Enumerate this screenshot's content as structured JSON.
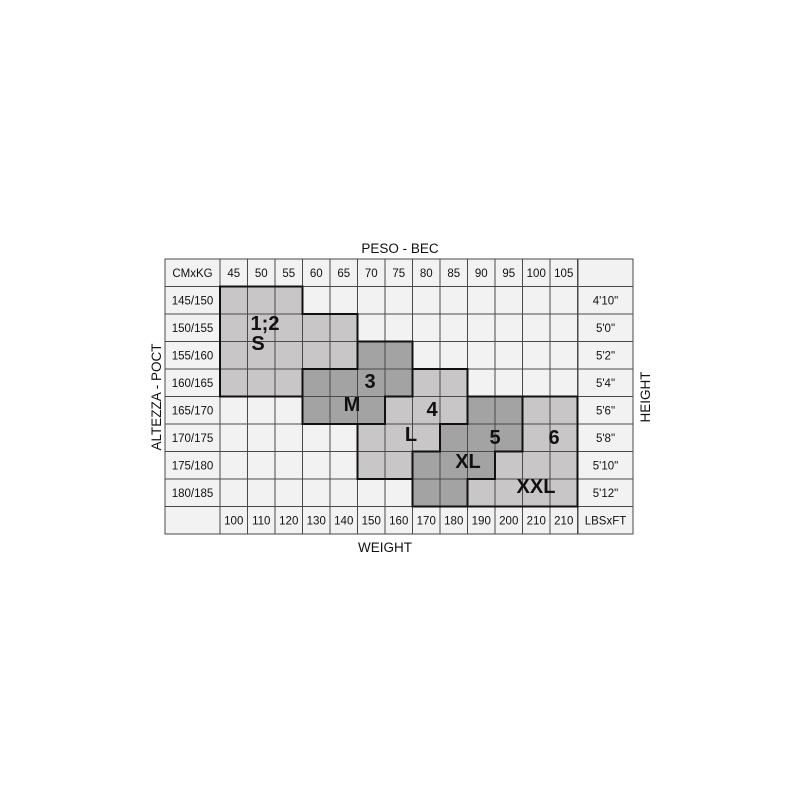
{
  "chart_data": {
    "type": "table",
    "title_top": "PESO - BEC",
    "title_bottom": "WEIGHT",
    "title_left": "ALTEZZA - POCT",
    "title_right": "HEIGHT",
    "corner_top": "CMxKG",
    "corner_bottom_right": "LBSxFT",
    "weights_kg": [
      "45",
      "50",
      "55",
      "60",
      "65",
      "70",
      "75",
      "80",
      "85",
      "90",
      "95",
      "100",
      "105"
    ],
    "weights_lbs": [
      "100",
      "110",
      "120",
      "130",
      "140",
      "150",
      "160",
      "170",
      "180",
      "190",
      "200",
      "210",
      "210"
    ],
    "heights_cm": [
      "145/150",
      "150/155",
      "155/160",
      "160/165",
      "165/170",
      "170/175",
      "175/180",
      "180/185"
    ],
    "heights_ft": [
      "4'10\"",
      "5'0\"",
      "5'2\"",
      "5'4\"",
      "5'6\"",
      "5'8\"",
      "5'10\"",
      "5'12\""
    ],
    "sizes": [
      {
        "number": "1;2",
        "letter": "S",
        "shade": "light",
        "cells": {
          "0": [
            0,
            2
          ],
          "1": [
            0,
            4
          ],
          "2": [
            0,
            4
          ],
          "3": [
            0,
            2
          ]
        }
      },
      {
        "number": "3",
        "letter": "M",
        "shade": "dark",
        "cells": {
          "2": [
            5,
            6
          ],
          "3": [
            3,
            6
          ],
          "4": [
            3,
            5
          ]
        }
      },
      {
        "number": "4",
        "letter": "L",
        "shade": "light",
        "cells": {
          "3": [
            7,
            8
          ],
          "4": [
            6,
            8
          ],
          "5": [
            5,
            7
          ],
          "6": [
            5,
            6
          ]
        }
      },
      {
        "number": "5",
        "letter": "XL",
        "shade": "dark",
        "cells": {
          "4": [
            9,
            10
          ],
          "5": [
            8,
            10
          ],
          "6": [
            7,
            9
          ],
          "7": [
            7,
            8
          ]
        }
      },
      {
        "number": "6",
        "letter": "XXL",
        "shade": "light",
        "cells": {
          "4": [
            11,
            12
          ],
          "5": [
            11,
            12
          ],
          "6": [
            10,
            12
          ],
          "7": [
            9,
            12
          ]
        }
      }
    ],
    "colors": {
      "empty": "#f2f2f2",
      "light": "#c8c6c7",
      "dark": "#a3a3a3",
      "grid": "#4a4a4a",
      "border": "#111111"
    }
  }
}
